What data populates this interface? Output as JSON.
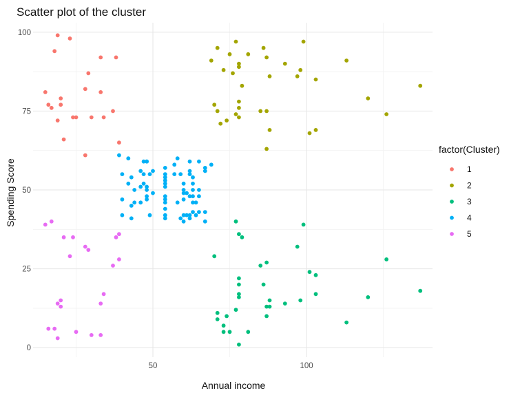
{
  "chart_data": {
    "type": "scatter",
    "title": "Scatter plot of the cluster",
    "xlabel": "Annual income",
    "ylabel": "Spending Score",
    "xlim": [
      11,
      141
    ],
    "ylim": [
      -3,
      103
    ],
    "x_ticks": [
      50,
      100
    ],
    "y_ticks": [
      0,
      25,
      50,
      75,
      100
    ],
    "grid": true,
    "legend": {
      "title": "factor(Cluster)",
      "position": "right"
    },
    "series": [
      {
        "name": "1",
        "color": "#F8766D",
        "points": [
          [
            15,
            81
          ],
          [
            16,
            77
          ],
          [
            17,
            76
          ],
          [
            18,
            94
          ],
          [
            19,
            99
          ],
          [
            19,
            72
          ],
          [
            20,
            79
          ],
          [
            20,
            77
          ],
          [
            21,
            66
          ],
          [
            23,
            98
          ],
          [
            24,
            73
          ],
          [
            25,
            73
          ],
          [
            28,
            82
          ],
          [
            28,
            61
          ],
          [
            29,
            87
          ],
          [
            30,
            73
          ],
          [
            33,
            92
          ],
          [
            33,
            81
          ],
          [
            34,
            73
          ],
          [
            37,
            75
          ],
          [
            38,
            92
          ],
          [
            39,
            65
          ]
        ]
      },
      {
        "name": "2",
        "color": "#A3A500",
        "points": [
          [
            69,
            91
          ],
          [
            70,
            77
          ],
          [
            71,
            95
          ],
          [
            71,
            75
          ],
          [
            72,
            71
          ],
          [
            73,
            88
          ],
          [
            74,
            72
          ],
          [
            75,
            93
          ],
          [
            76,
            87
          ],
          [
            77,
            97
          ],
          [
            77,
            74
          ],
          [
            78,
            90
          ],
          [
            78,
            89
          ],
          [
            78,
            78
          ],
          [
            78,
            76
          ],
          [
            78,
            73
          ],
          [
            79,
            83
          ],
          [
            81,
            93
          ],
          [
            85,
            75
          ],
          [
            86,
            95
          ],
          [
            87,
            92
          ],
          [
            87,
            75
          ],
          [
            87,
            63
          ],
          [
            88,
            86
          ],
          [
            88,
            69
          ],
          [
            93,
            90
          ],
          [
            97,
            86
          ],
          [
            98,
            88
          ],
          [
            99,
            97
          ],
          [
            101,
            68
          ],
          [
            103,
            85
          ],
          [
            103,
            69
          ],
          [
            113,
            91
          ],
          [
            120,
            79
          ],
          [
            126,
            74
          ],
          [
            137,
            83
          ]
        ]
      },
      {
        "name": "3",
        "color": "#00BF7D",
        "points": [
          [
            70,
            29
          ],
          [
            71,
            11
          ],
          [
            71,
            9
          ],
          [
            73,
            5
          ],
          [
            73,
            7
          ],
          [
            74,
            10
          ],
          [
            75,
            5
          ],
          [
            77,
            40
          ],
          [
            77,
            12
          ],
          [
            78,
            36
          ],
          [
            78,
            22
          ],
          [
            78,
            17
          ],
          [
            78,
            20
          ],
          [
            78,
            16
          ],
          [
            78,
            1
          ],
          [
            79,
            35
          ],
          [
            81,
            5
          ],
          [
            85,
            26
          ],
          [
            86,
            20
          ],
          [
            87,
            27
          ],
          [
            87,
            13
          ],
          [
            87,
            10
          ],
          [
            88,
            13
          ],
          [
            88,
            15
          ],
          [
            93,
            14
          ],
          [
            97,
            32
          ],
          [
            98,
            15
          ],
          [
            99,
            39
          ],
          [
            101,
            24
          ],
          [
            103,
            17
          ],
          [
            103,
            23
          ],
          [
            113,
            8
          ],
          [
            120,
            16
          ],
          [
            126,
            28
          ],
          [
            137,
            18
          ]
        ]
      },
      {
        "name": "4",
        "color": "#00B0F6",
        "points": [
          [
            39,
            61
          ],
          [
            40,
            55
          ],
          [
            40,
            47
          ],
          [
            40,
            42
          ],
          [
            42,
            52
          ],
          [
            42,
            60
          ],
          [
            43,
            54
          ],
          [
            43,
            45
          ],
          [
            43,
            41
          ],
          [
            44,
            50
          ],
          [
            44,
            46
          ],
          [
            46,
            51
          ],
          [
            46,
            46
          ],
          [
            46,
            56
          ],
          [
            47,
            55
          ],
          [
            47,
            52
          ],
          [
            47,
            59
          ],
          [
            48,
            51
          ],
          [
            48,
            59
          ],
          [
            48,
            50
          ],
          [
            48,
            48
          ],
          [
            48,
            59
          ],
          [
            48,
            47
          ],
          [
            49,
            55
          ],
          [
            49,
            42
          ],
          [
            50,
            49
          ],
          [
            50,
            56
          ],
          [
            54,
            47
          ],
          [
            54,
            54
          ],
          [
            54,
            53
          ],
          [
            54,
            48
          ],
          [
            54,
            52
          ],
          [
            54,
            42
          ],
          [
            54,
            51
          ],
          [
            54,
            55
          ],
          [
            54,
            41
          ],
          [
            54,
            44
          ],
          [
            54,
            57
          ],
          [
            54,
            46
          ],
          [
            57,
            58
          ],
          [
            57,
            55
          ],
          [
            58,
            60
          ],
          [
            58,
            46
          ],
          [
            59,
            55
          ],
          [
            59,
            41
          ],
          [
            60,
            49
          ],
          [
            60,
            40
          ],
          [
            60,
            42
          ],
          [
            60,
            52
          ],
          [
            60,
            47
          ],
          [
            60,
            50
          ],
          [
            61,
            42
          ],
          [
            61,
            49
          ],
          [
            62,
            41
          ],
          [
            62,
            48
          ],
          [
            62,
            59
          ],
          [
            62,
            55
          ],
          [
            62,
            56
          ],
          [
            62,
            42
          ],
          [
            63,
            50
          ],
          [
            63,
            46
          ],
          [
            63,
            43
          ],
          [
            63,
            48
          ],
          [
            63,
            52
          ],
          [
            63,
            54
          ],
          [
            64,
            42
          ],
          [
            64,
            46
          ],
          [
            65,
            48
          ],
          [
            65,
            50
          ],
          [
            65,
            43
          ],
          [
            65,
            59
          ],
          [
            67,
            43
          ],
          [
            67,
            57
          ],
          [
            67,
            56
          ],
          [
            67,
            40
          ],
          [
            69,
            58
          ]
        ]
      },
      {
        "name": "5",
        "color": "#E76BF3",
        "points": [
          [
            15,
            39
          ],
          [
            16,
            6
          ],
          [
            17,
            40
          ],
          [
            18,
            6
          ],
          [
            19,
            3
          ],
          [
            19,
            14
          ],
          [
            20,
            15
          ],
          [
            20,
            13
          ],
          [
            21,
            35
          ],
          [
            23,
            29
          ],
          [
            24,
            35
          ],
          [
            25,
            5
          ],
          [
            28,
            32
          ],
          [
            29,
            31
          ],
          [
            30,
            4
          ],
          [
            33,
            4
          ],
          [
            33,
            14
          ],
          [
            34,
            17
          ],
          [
            37,
            26
          ],
          [
            38,
            35
          ],
          [
            39,
            36
          ],
          [
            39,
            28
          ]
        ]
      }
    ]
  }
}
